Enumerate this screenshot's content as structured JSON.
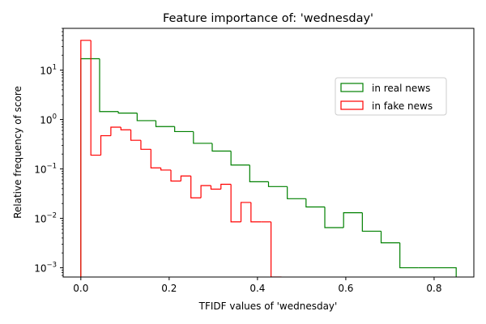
{
  "chart_data": {
    "type": "histogram",
    "title": "Feature importance of: 'wednesday'",
    "xlabel": "TFIDF values of 'wednesday'",
    "ylabel": "Relative frequency of score",
    "yscale": "log",
    "xlim": [
      -0.04,
      0.89
    ],
    "ylim": [
      0.00065,
      70
    ],
    "xticks": [
      {
        "value": 0.0,
        "label": "0.0"
      },
      {
        "value": 0.2,
        "label": "0.2"
      },
      {
        "value": 0.4,
        "label": "0.4"
      },
      {
        "value": 0.6,
        "label": "0.6"
      },
      {
        "value": 0.8,
        "label": "0.8"
      }
    ],
    "yticks": [
      {
        "value": 10,
        "base": "10",
        "exp": "1"
      },
      {
        "value": 1,
        "base": "10",
        "exp": "0"
      },
      {
        "value": 0.1,
        "base": "10",
        "exp": "−1"
      },
      {
        "value": 0.01,
        "base": "10",
        "exp": "−2"
      },
      {
        "value": 0.001,
        "base": "10",
        "exp": "−3"
      }
    ],
    "grid": false,
    "legend_position": "upper right",
    "series": [
      {
        "name": "in real news",
        "color": "#008000",
        "bin_edges": [
          0.0,
          0.0425,
          0.085,
          0.1275,
          0.17,
          0.2125,
          0.255,
          0.2975,
          0.34,
          0.3825,
          0.425,
          0.4675,
          0.51,
          0.5525,
          0.595,
          0.6375,
          0.68,
          0.7225,
          0.765,
          0.8075,
          0.85
        ],
        "values": [
          17,
          1.45,
          1.35,
          0.95,
          0.72,
          0.57,
          0.33,
          0.23,
          0.12,
          0.055,
          0.044,
          0.025,
          0.017,
          0.0065,
          0.013,
          0.0055,
          0.0032,
          0.001,
          0.001,
          0.001
        ]
      },
      {
        "name": "in fake news",
        "color": "#ff0000",
        "bin_edges": [
          0.0,
          0.0227,
          0.0453,
          0.068,
          0.0907,
          0.1133,
          0.136,
          0.1587,
          0.1813,
          0.204,
          0.2267,
          0.2493,
          0.272,
          0.2947,
          0.3173,
          0.34,
          0.3627,
          0.3853,
          0.408,
          0.4307,
          0.4533
        ],
        "values": [
          40,
          0.19,
          0.47,
          0.7,
          0.62,
          0.38,
          0.25,
          0.105,
          0.095,
          0.057,
          0.072,
          0.026,
          0.046,
          0.039,
          0.049,
          0.0085,
          0.021,
          0.0085,
          0.0085,
          0.00065
        ]
      }
    ]
  }
}
